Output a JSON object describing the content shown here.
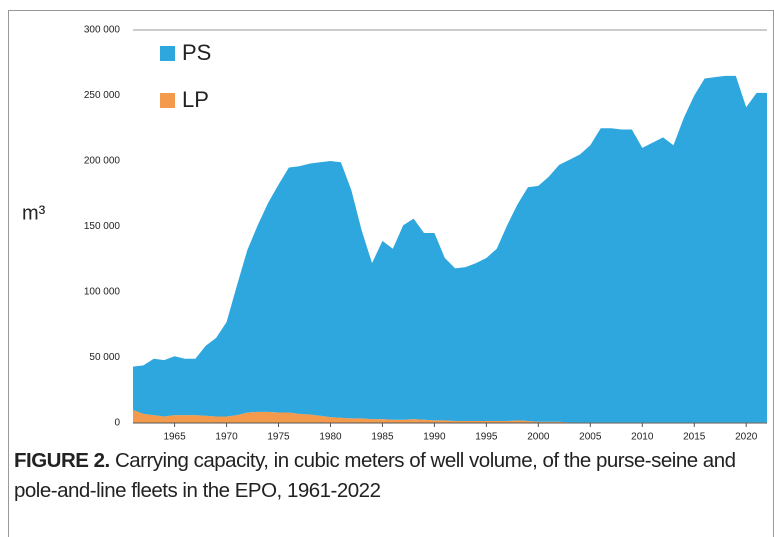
{
  "chart_data": {
    "type": "stacked-area",
    "y_label": "m³",
    "caption_label": "FIGURE 2.",
    "caption": "Carrying capacity, in cubic meters of well volume, of the purse-seine and pole-and-line fleets in the EPO, 1961-2022",
    "x": [
      1961,
      1962,
      1963,
      1964,
      1965,
      1966,
      1967,
      1968,
      1969,
      1970,
      1971,
      1972,
      1973,
      1974,
      1975,
      1976,
      1977,
      1978,
      1979,
      1980,
      1981,
      1982,
      1983,
      1984,
      1985,
      1986,
      1987,
      1988,
      1989,
      1990,
      1991,
      1992,
      1993,
      1994,
      1995,
      1996,
      1997,
      1998,
      1999,
      2000,
      2001,
      2002,
      2003,
      2004,
      2005,
      2006,
      2007,
      2008,
      2009,
      2010,
      2011,
      2012,
      2013,
      2014,
      2015,
      2016,
      2017,
      2018,
      2019,
      2020,
      2021,
      2022
    ],
    "series": [
      {
        "name": "PS",
        "color": "#2ea6de",
        "values": [
          33000,
          37000,
          43000,
          43000,
          45000,
          43000,
          43000,
          53500,
          60000,
          72000,
          99000,
          124000,
          142500,
          159500,
          174000,
          187000,
          189000,
          191500,
          193500,
          195500,
          195000,
          174500,
          143500,
          119000,
          136000,
          130500,
          148500,
          153000,
          142500,
          143000,
          124000,
          116500,
          117500,
          120500,
          124500,
          131500,
          149500,
          165000,
          178500,
          180000,
          187000,
          196000,
          200500,
          204500,
          211500,
          224500,
          224500,
          223500,
          223500,
          209500,
          213500,
          217500,
          211500,
          232500,
          249500,
          262500,
          263500,
          264500,
          264500,
          240500,
          251500,
          251500
        ]
      },
      {
        "name": "LP",
        "color": "#f39a4c",
        "values": [
          10000,
          7000,
          6000,
          5000,
          6000,
          6000,
          6000,
          5500,
          5000,
          5000,
          6000,
          8000,
          8500,
          8500,
          8000,
          8000,
          7000,
          6500,
          5500,
          4500,
          4000,
          3500,
          3500,
          3000,
          3000,
          2500,
          2500,
          3000,
          2500,
          2000,
          2000,
          1500,
          1500,
          1500,
          1500,
          1500,
          1500,
          2000,
          1500,
          1000,
          1000,
          1000,
          500,
          500,
          500,
          500,
          500,
          500,
          500,
          500,
          500,
          500,
          500,
          500,
          500,
          500,
          500,
          500,
          500,
          500,
          500,
          500
        ]
      }
    ],
    "xlim": [
      1961,
      2022
    ],
    "xticks": [
      1965,
      1970,
      1975,
      1980,
      1985,
      1990,
      1995,
      2000,
      2005,
      2010,
      2015,
      2020
    ],
    "ylim": [
      0,
      300000
    ],
    "yticks": [
      0,
      {
        "value": 50000,
        "label": "50 000"
      },
      {
        "value": 100000,
        "label": "100 000"
      },
      {
        "value": 150000,
        "label": "150 000"
      },
      {
        "value": 200000,
        "label": "200 000"
      },
      {
        "value": 250000,
        "label": "250 000"
      },
      {
        "value": 300000,
        "label": "300 000"
      }
    ],
    "legend": "top-left"
  }
}
